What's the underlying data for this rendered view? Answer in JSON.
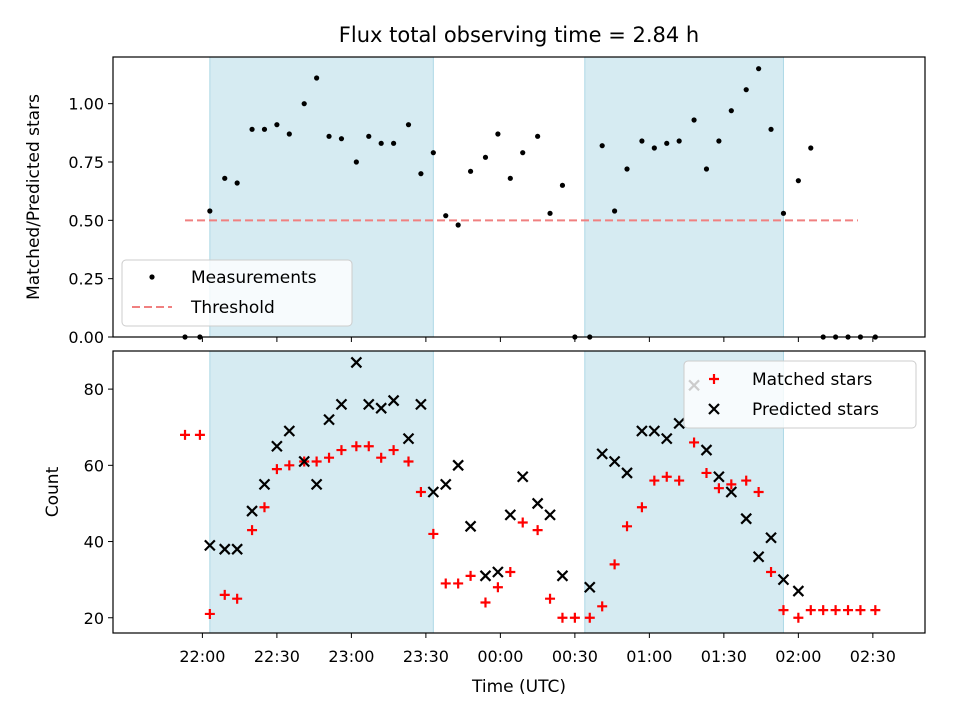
{
  "title": "Flux total observing time = 2.84 h",
  "xlabel": "Time (UTC)",
  "x_ticks": [
    {
      "label": "22:00",
      "hour": 22.0
    },
    {
      "label": "22:30",
      "hour": 22.5
    },
    {
      "label": "23:00",
      "hour": 23.0
    },
    {
      "label": "23:30",
      "hour": 23.5
    },
    {
      "label": "00:00",
      "hour": 24.0
    },
    {
      "label": "00:30",
      "hour": 24.5
    },
    {
      "label": "01:00",
      "hour": 25.0
    },
    {
      "label": "01:30",
      "hour": 25.5
    },
    {
      "label": "02:00",
      "hour": 26.0
    },
    {
      "label": "02:30",
      "hour": 26.5
    }
  ],
  "colors": {
    "shade": "#add8e6",
    "threshold": "#f08080",
    "matched": "#ff0000",
    "predicted": "#000000",
    "measure": "#000000"
  },
  "chart_data": [
    {
      "type": "scatter",
      "ylabel": "Matched/Predicted stars",
      "ylim": [
        0,
        1.2
      ],
      "y_ticks": [
        "0.00",
        "0.25",
        "0.50",
        "0.75",
        "1.00"
      ],
      "shaded_ranges": [
        [
          "22:03",
          "23:33"
        ],
        [
          "00:34",
          "01:54"
        ]
      ],
      "legend": {
        "position": "lower-left",
        "items": [
          "Measurements",
          "Threshold"
        ]
      },
      "threshold": {
        "name": "Threshold",
        "value": 0.5,
        "x_range": [
          "21:53",
          "02:24"
        ]
      },
      "series": [
        {
          "name": "Measurements",
          "points": [
            [
              "21:53",
              0
            ],
            [
              "21:59",
              0
            ],
            [
              "22:03",
              0.54
            ],
            [
              "22:09",
              0.68
            ],
            [
              "22:14",
              0.66
            ],
            [
              "22:20",
              0.89
            ],
            [
              "22:25",
              0.89
            ],
            [
              "22:30",
              0.91
            ],
            [
              "22:35",
              0.87
            ],
            [
              "22:41",
              1.0
            ],
            [
              "22:46",
              1.11
            ],
            [
              "22:51",
              0.86
            ],
            [
              "22:56",
              0.85
            ],
            [
              "23:02",
              0.75
            ],
            [
              "23:07",
              0.86
            ],
            [
              "23:12",
              0.83
            ],
            [
              "23:17",
              0.83
            ],
            [
              "23:23",
              0.91
            ],
            [
              "23:28",
              0.7
            ],
            [
              "23:33",
              0.79
            ],
            [
              "23:38",
              0.52
            ],
            [
              "23:43",
              0.48
            ],
            [
              "23:48",
              0.71
            ],
            [
              "23:54",
              0.77
            ],
            [
              "23:59",
              0.87
            ],
            [
              "00:04",
              0.68
            ],
            [
              "00:09",
              0.79
            ],
            [
              "00:15",
              0.86
            ],
            [
              "00:20",
              0.53
            ],
            [
              "00:25",
              0.65
            ],
            [
              "00:30",
              0
            ],
            [
              "00:36",
              0
            ],
            [
              "00:41",
              0.82
            ],
            [
              "00:46",
              0.54
            ],
            [
              "00:51",
              0.72
            ],
            [
              "00:57",
              0.84
            ],
            [
              "01:02",
              0.81
            ],
            [
              "01:07",
              0.83
            ],
            [
              "01:12",
              0.84
            ],
            [
              "01:18",
              0.93
            ],
            [
              "01:23",
              0.72
            ],
            [
              "01:28",
              0.84
            ],
            [
              "01:33",
              0.97
            ],
            [
              "01:39",
              1.06
            ],
            [
              "01:44",
              1.15
            ],
            [
              "01:49",
              0.89
            ],
            [
              "01:54",
              0.53
            ],
            [
              "02:00",
              0.67
            ],
            [
              "02:05",
              0.81
            ],
            [
              "02:10",
              0
            ],
            [
              "02:15",
              0
            ],
            [
              "02:20",
              0
            ],
            [
              "02:25",
              0
            ],
            [
              "02:31",
              0
            ]
          ]
        }
      ]
    },
    {
      "type": "scatter",
      "ylabel": "Count",
      "ylim": [
        16,
        90
      ],
      "y_ticks": [
        "20",
        "40",
        "60",
        "80"
      ],
      "shaded_ranges": [
        [
          "22:03",
          "23:33"
        ],
        [
          "00:34",
          "01:54"
        ]
      ],
      "legend": {
        "position": "upper-right",
        "items": [
          "Matched stars",
          "Predicted stars"
        ]
      },
      "series": [
        {
          "name": "Matched stars",
          "marker": "plus",
          "points": [
            [
              "21:53",
              68
            ],
            [
              "21:59",
              68
            ],
            [
              "22:03",
              21
            ],
            [
              "22:09",
              26
            ],
            [
              "22:14",
              25
            ],
            [
              "22:20",
              43
            ],
            [
              "22:25",
              49
            ],
            [
              "22:30",
              59
            ],
            [
              "22:35",
              60
            ],
            [
              "22:41",
              61
            ],
            [
              "22:46",
              61
            ],
            [
              "22:51",
              62
            ],
            [
              "22:56",
              64
            ],
            [
              "23:02",
              65
            ],
            [
              "23:07",
              65
            ],
            [
              "23:12",
              62
            ],
            [
              "23:17",
              64
            ],
            [
              "23:23",
              61
            ],
            [
              "23:28",
              53
            ],
            [
              "23:33",
              42
            ],
            [
              "23:38",
              29
            ],
            [
              "23:43",
              29
            ],
            [
              "23:48",
              31
            ],
            [
              "23:54",
              24
            ],
            [
              "23:59",
              28
            ],
            [
              "00:04",
              32
            ],
            [
              "00:09",
              45
            ],
            [
              "00:15",
              43
            ],
            [
              "00:20",
              25
            ],
            [
              "00:25",
              20
            ],
            [
              "00:30",
              20
            ],
            [
              "00:36",
              20
            ],
            [
              "00:41",
              23
            ],
            [
              "00:46",
              34
            ],
            [
              "00:51",
              44
            ],
            [
              "00:57",
              49
            ],
            [
              "01:02",
              56
            ],
            [
              "01:07",
              57
            ],
            [
              "01:12",
              56
            ],
            [
              "01:18",
              66
            ],
            [
              "01:23",
              58
            ],
            [
              "01:28",
              54
            ],
            [
              "01:33",
              55
            ],
            [
              "01:39",
              56
            ],
            [
              "01:44",
              53
            ],
            [
              "01:49",
              32
            ],
            [
              "01:54",
              22
            ],
            [
              "02:00",
              20
            ],
            [
              "02:05",
              22
            ],
            [
              "02:10",
              22
            ],
            [
              "02:15",
              22
            ],
            [
              "02:20",
              22
            ],
            [
              "02:25",
              22
            ],
            [
              "02:31",
              22
            ]
          ]
        },
        {
          "name": "Predicted stars",
          "marker": "x",
          "points": [
            [
              "22:03",
              39
            ],
            [
              "22:09",
              38
            ],
            [
              "22:14",
              38
            ],
            [
              "22:20",
              48
            ],
            [
              "22:25",
              55
            ],
            [
              "22:30",
              65
            ],
            [
              "22:35",
              69
            ],
            [
              "22:41",
              61
            ],
            [
              "22:46",
              55
            ],
            [
              "22:51",
              72
            ],
            [
              "22:56",
              76
            ],
            [
              "23:02",
              87
            ],
            [
              "23:07",
              76
            ],
            [
              "23:12",
              75
            ],
            [
              "23:17",
              77
            ],
            [
              "23:23",
              67
            ],
            [
              "23:28",
              76
            ],
            [
              "23:33",
              53
            ],
            [
              "23:38",
              55
            ],
            [
              "23:43",
              60
            ],
            [
              "23:48",
              44
            ],
            [
              "23:54",
              31
            ],
            [
              "23:59",
              32
            ],
            [
              "00:04",
              47
            ],
            [
              "00:09",
              57
            ],
            [
              "00:15",
              50
            ],
            [
              "00:20",
              47
            ],
            [
              "00:25",
              31
            ],
            [
              "00:36",
              28
            ],
            [
              "00:41",
              63
            ],
            [
              "00:46",
              61
            ],
            [
              "00:51",
              58
            ],
            [
              "00:57",
              69
            ],
            [
              "01:02",
              69
            ],
            [
              "01:07",
              67
            ],
            [
              "01:12",
              71
            ],
            [
              "01:18",
              81
            ],
            [
              "01:23",
              64
            ],
            [
              "01:28",
              57
            ],
            [
              "01:33",
              53
            ],
            [
              "01:39",
              46
            ],
            [
              "01:44",
              36
            ],
            [
              "01:49",
              41
            ],
            [
              "01:54",
              30
            ],
            [
              "02:00",
              27
            ]
          ]
        }
      ]
    }
  ]
}
